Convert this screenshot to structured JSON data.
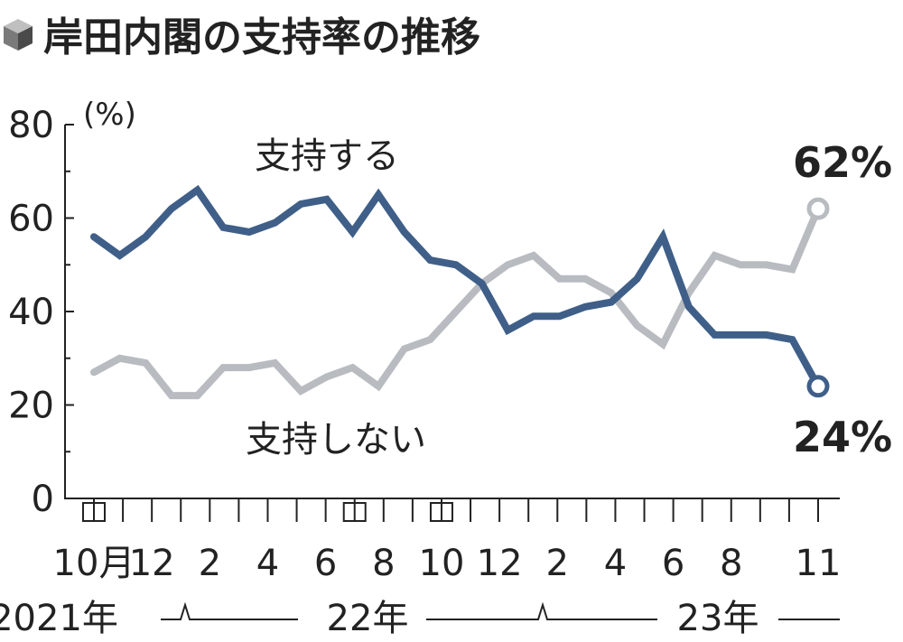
{
  "chart_data": {
    "type": "line",
    "title": "岸田内閣の支持率の推移",
    "unit": "(%)",
    "ylim": [
      0,
      80
    ],
    "y_ticks": [
      0,
      20,
      40,
      60,
      80
    ],
    "x_tick_labels": [
      "10月",
      "12",
      "2",
      "4",
      "6",
      "8",
      "10",
      "12",
      "2",
      "4",
      "6",
      "8",
      "11"
    ],
    "year_labels": [
      "2021年",
      "22年",
      "23年"
    ],
    "x": [
      "2021-10a",
      "2021-10b",
      "2021-11",
      "2021-12",
      "2022-01",
      "2022-02",
      "2022-03",
      "2022-04",
      "2022-05",
      "2022-06",
      "2022-07a",
      "2022-07b",
      "2022-08a",
      "2022-08b",
      "2022-09",
      "2022-10",
      "2022-11",
      "2022-12",
      "2023-01",
      "2023-02",
      "2023-03",
      "2023-04",
      "2023-05",
      "2023-06",
      "2023-07",
      "2023-08",
      "2023-09",
      "2023-10",
      "2023-11"
    ],
    "series": [
      {
        "name": "支持する",
        "color": "#3f5f88",
        "end_label": "24%",
        "values": [
          56,
          52,
          56,
          62,
          66,
          58,
          57,
          59,
          63,
          64,
          57,
          65,
          57,
          51,
          50,
          46,
          36,
          39,
          39,
          41,
          42,
          47,
          56,
          41,
          35,
          35,
          35,
          34,
          24
        ]
      },
      {
        "name": "支持しない",
        "color": "#b8bcc1",
        "end_label": "62%",
        "values": [
          27,
          30,
          29,
          22,
          22,
          28,
          28,
          29,
          23,
          26,
          28,
          24,
          32,
          34,
          40,
          46,
          50,
          52,
          47,
          47,
          44,
          37,
          33,
          44,
          52,
          50,
          50,
          49,
          62
        ]
      }
    ]
  }
}
